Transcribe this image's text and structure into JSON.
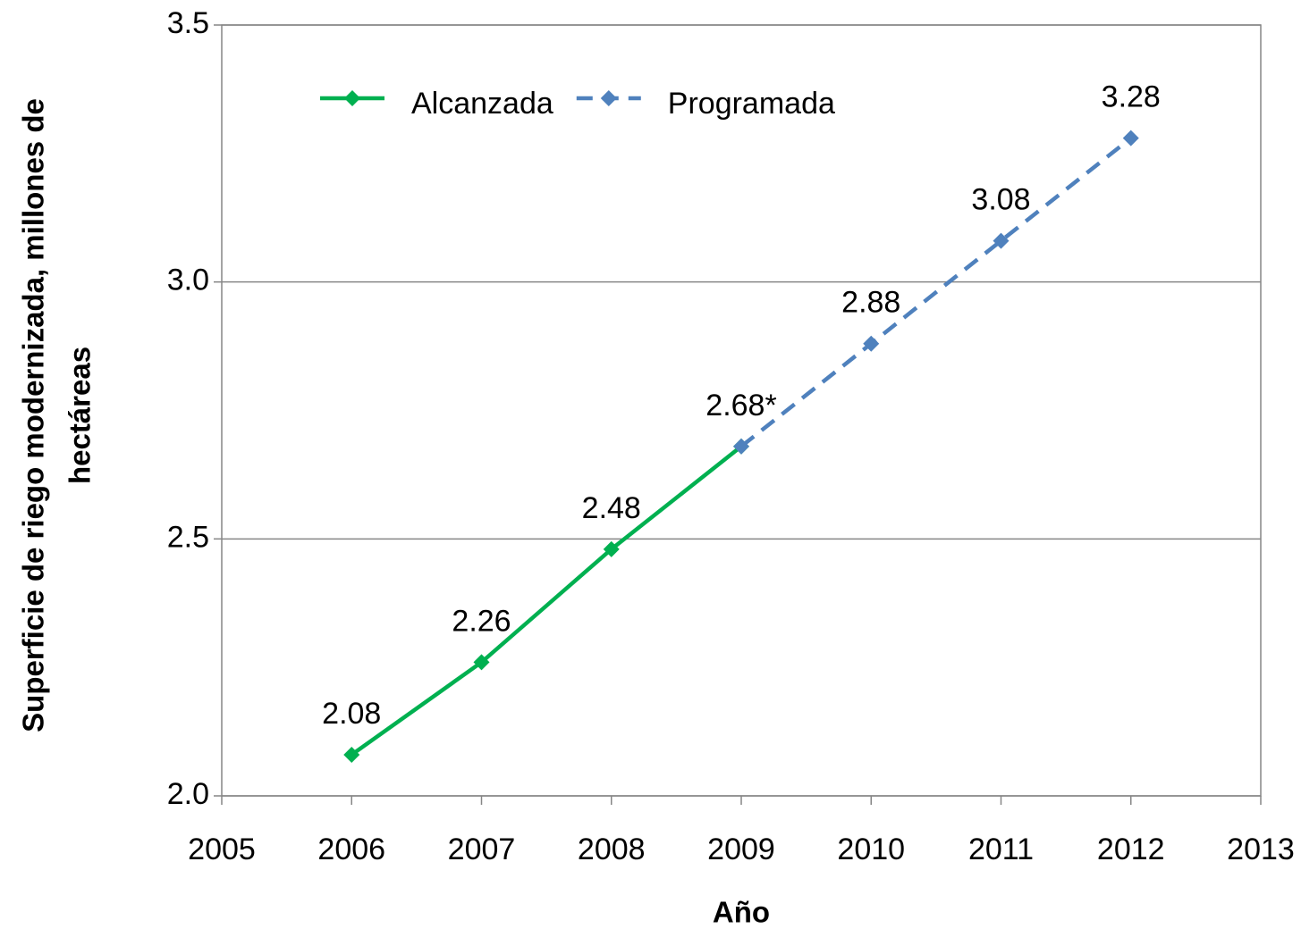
{
  "chart_data": {
    "type": "line",
    "xlabel": "Año",
    "ylabel": [
      "Superficie de riego modernizada, millones de",
      "hectáreas"
    ],
    "series": [
      {
        "name": "Alcanzada",
        "color": "#00b050",
        "dashed": false,
        "x": [
          2006,
          2007,
          2008,
          2009
        ],
        "values": [
          2.08,
          2.26,
          2.48,
          2.68
        ],
        "value_labels": [
          "2.08",
          "2.26",
          "2.48",
          "2.68*"
        ]
      },
      {
        "name": "Programada",
        "color": "#4f81bd",
        "dashed": true,
        "x": [
          2009,
          2010,
          2011,
          2012
        ],
        "values": [
          2.68,
          2.88,
          3.08,
          3.28
        ],
        "value_labels": [
          null,
          "2.88",
          "3.08",
          "3.28"
        ]
      }
    ],
    "xlim": [
      2005,
      2013
    ],
    "xticks": [
      2005,
      2006,
      2007,
      2008,
      2009,
      2010,
      2011,
      2012,
      2013
    ],
    "ylim": [
      2.0,
      3.5
    ],
    "yticks": [
      {
        "value": 2.0,
        "label": "2.0"
      },
      2.5,
      {
        "value": 3.0,
        "label": "3.0"
      },
      3.5
    ],
    "grid": true,
    "legend": "top-left"
  }
}
